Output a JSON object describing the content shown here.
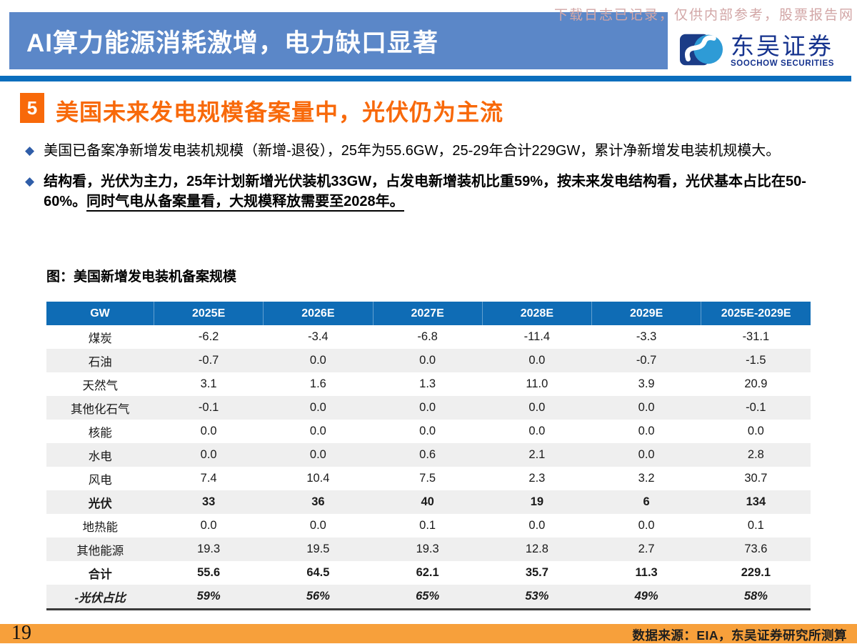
{
  "watermark": "下载日志已记录，仅供内部参考，股票报告网",
  "header": {
    "banner_title": "AI算力能源消耗激增，电力缺口显著",
    "logo": {
      "cn": "东吴证券",
      "en": "SOOCHOW SECURITIES"
    }
  },
  "section": {
    "number": "5",
    "title": "美国未来发电规模备案量中，光伏仍为主流"
  },
  "bullets": {
    "first": "美国已备案净新增发电装机规模（新增-退役），25年为55.6GW，25-29年合计229GW，累计净新增发电装机规模大。",
    "second_main": "结构看，光伏为主力，25年计划新增光伏装机33GW，占发电新增装机比重59%，按未来发电结构看，光伏基本占比在50-60%。",
    "second_underlined": "同时气电从备案量看，大规模释放需要至2028年。"
  },
  "table": {
    "caption": "图：美国新增发电装机备案规模",
    "columns": [
      "GW",
      "2025E",
      "2026E",
      "2027E",
      "2028E",
      "2029E",
      "2025E-2029E"
    ],
    "rows": [
      {
        "label": "煤炭",
        "values": [
          "-6.2",
          "-3.4",
          "-6.8",
          "-11.4",
          "-3.3",
          "-31.1"
        ],
        "bold": false,
        "italic": false
      },
      {
        "label": "石油",
        "values": [
          "-0.7",
          "0.0",
          "0.0",
          "0.0",
          "-0.7",
          "-1.5"
        ],
        "bold": false,
        "italic": false
      },
      {
        "label": "天然气",
        "values": [
          "3.1",
          "1.6",
          "1.3",
          "11.0",
          "3.9",
          "20.9"
        ],
        "bold": false,
        "italic": false
      },
      {
        "label": "其他化石气",
        "values": [
          "-0.1",
          "0.0",
          "0.0",
          "0.0",
          "0.0",
          "-0.1"
        ],
        "bold": false,
        "italic": false
      },
      {
        "label": "核能",
        "values": [
          "0.0",
          "0.0",
          "0.0",
          "0.0",
          "0.0",
          "0.0"
        ],
        "bold": false,
        "italic": false
      },
      {
        "label": "水电",
        "values": [
          "0.0",
          "0.0",
          "0.6",
          "2.1",
          "0.0",
          "2.8"
        ],
        "bold": false,
        "italic": false
      },
      {
        "label": "风电",
        "values": [
          "7.4",
          "10.4",
          "7.5",
          "2.3",
          "3.2",
          "30.7"
        ],
        "bold": false,
        "italic": false
      },
      {
        "label": "光伏",
        "values": [
          "33",
          "36",
          "40",
          "19",
          "6",
          "134"
        ],
        "bold": true,
        "italic": false
      },
      {
        "label": "地热能",
        "values": [
          "0.0",
          "0.0",
          "0.1",
          "0.0",
          "0.0",
          "0.1"
        ],
        "bold": false,
        "italic": false
      },
      {
        "label": "其他能源",
        "values": [
          "19.3",
          "19.5",
          "19.3",
          "12.8",
          "2.7",
          "73.6"
        ],
        "bold": false,
        "italic": false
      },
      {
        "label": "合计",
        "values": [
          "55.6",
          "64.5",
          "62.1",
          "35.7",
          "11.3",
          "229.1"
        ],
        "bold": true,
        "italic": false
      },
      {
        "label": "-光伏占比",
        "values": [
          "59%",
          "56%",
          "65%",
          "53%",
          "49%",
          "58%"
        ],
        "bold": true,
        "italic": true
      }
    ]
  },
  "footer": {
    "page_number": "19",
    "source": "数据来源：EIA，东吴证券研究所测算"
  },
  "colors": {
    "banner_blue": "#5b87c8",
    "divider_blue": "#0a6ebd",
    "table_header_blue": "#0f6cb5",
    "accent_orange": "#f8690a",
    "footer_orange": "#f7a03b",
    "row_alt_gray": "#efefef",
    "logo_navy": "#16338e",
    "logo_light_blue": "#2e9bd6",
    "bullet_diamond_blue": "#2f5da8",
    "watermark_pink": "#d2a6a6"
  }
}
